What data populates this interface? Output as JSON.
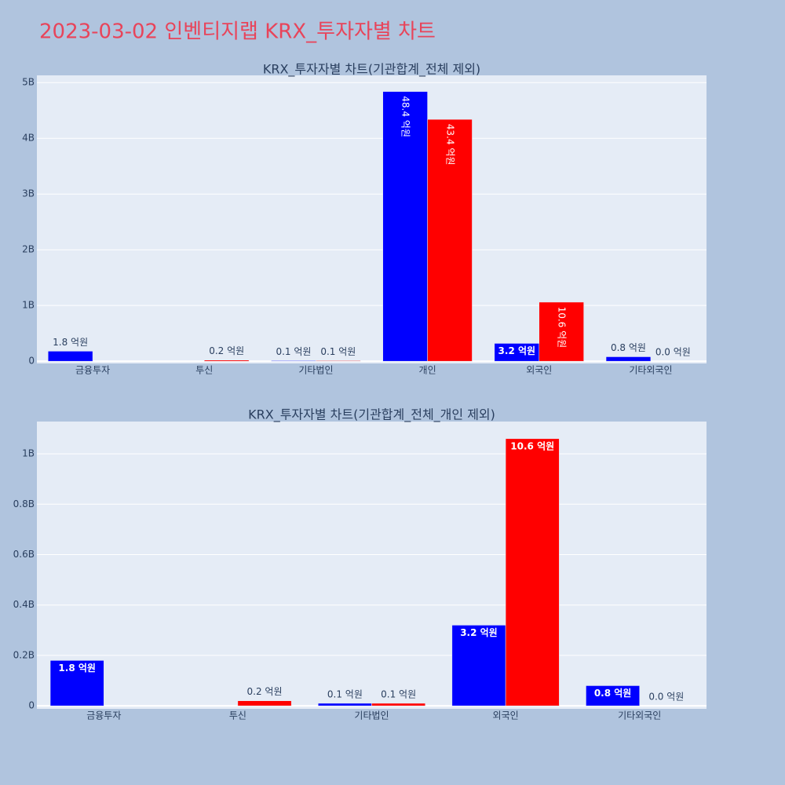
{
  "title": "2023-03-02 인벤티지랩 KRX_투자자별 차트",
  "chart_data": [
    {
      "type": "bar",
      "title": "KRX_투자자별 차트(기관합계_전체 제외)",
      "categories": [
        "금융투자",
        "투신",
        "기타법인",
        "개인",
        "외국인",
        "기타외국인"
      ],
      "series": [
        {
          "color": "#0000ff",
          "values": [
            180000000,
            null,
            10000000,
            4840000000,
            320000000,
            80000000
          ],
          "value_labels": [
            "1.8 억원",
            null,
            "0.1 억원",
            "48.4 억원",
            "3.2 억원",
            "0.8 억원"
          ]
        },
        {
          "color": "#ff0000",
          "values": [
            null,
            20000000,
            10000000,
            4340000000,
            1060000000,
            0
          ],
          "value_labels": [
            null,
            "0.2 억원",
            "0.1 억원",
            "43.4 억원",
            "10.6 억원",
            "0.0 억원"
          ]
        }
      ],
      "ylim": [
        -40000000,
        5130000000
      ],
      "yticks": [
        0,
        {
          "value": 1000000000,
          "label": "1B"
        },
        {
          "value": 2000000000,
          "label": "2B"
        },
        {
          "value": 3000000000,
          "label": "3B"
        },
        {
          "value": 4000000000,
          "label": "4B"
        },
        {
          "value": 5000000000,
          "label": "5B"
        }
      ],
      "grid": true
    },
    {
      "type": "bar",
      "title": "KRX_투자자별 차트(기관합계_전체_개인 제외)",
      "categories": [
        "금융투자",
        "투신",
        "기타법인",
        "외국인",
        "기타외국인"
      ],
      "series": [
        {
          "color": "#0000ff",
          "values": [
            180000000,
            null,
            10000000,
            320000000,
            80000000
          ],
          "value_labels": [
            "1.8 억원",
            null,
            "0.1 억원",
            "3.2 억원",
            "0.8 억원"
          ]
        },
        {
          "color": "#ff0000",
          "values": [
            null,
            20000000,
            10000000,
            1060000000,
            0
          ],
          "value_labels": [
            null,
            "0.2 억원",
            "0.1 억원",
            "10.6 억원",
            "0.0 억원"
          ]
        }
      ],
      "ylim": [
        -12000000,
        1128000000
      ],
      "yticks": [
        0,
        {
          "value": 200000000,
          "label": "0.2B"
        },
        {
          "value": 400000000,
          "label": "0.4B"
        },
        {
          "value": 600000000,
          "label": "0.6B"
        },
        {
          "value": 800000000,
          "label": "0.8B"
        },
        {
          "value": 1000000000,
          "label": "1B"
        }
      ],
      "grid": true
    }
  ]
}
